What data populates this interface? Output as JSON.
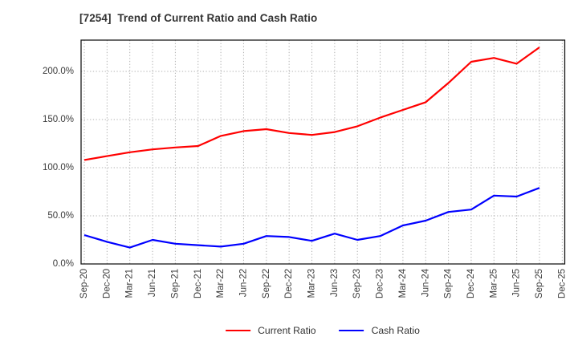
{
  "title": "[7254]  Trend of Current Ratio and Cash Ratio",
  "colors": {
    "current_ratio": "#ff0000",
    "cash_ratio": "#0000ff",
    "grid": "#b0b0b0",
    "spine": "#1a1a1a",
    "title_text": "#333333",
    "tick_text": "#3a3a3a"
  },
  "chart_data": {
    "type": "line",
    "title": "[7254]  Trend of Current Ratio and Cash Ratio",
    "categories": [
      "Sep-20",
      "Dec-20",
      "Mar-21",
      "Jun-21",
      "Sep-21",
      "Dec-21",
      "Mar-22",
      "Jun-22",
      "Sep-22",
      "Dec-22",
      "Mar-23",
      "Jun-23",
      "Sep-23",
      "Dec-23",
      "Mar-24",
      "Jun-24",
      "Sep-24",
      "Dec-24",
      "Mar-25",
      "Jun-25",
      "Sep-25",
      "Dec-25"
    ],
    "series": [
      {
        "name": "Current Ratio",
        "color": "#ff0000",
        "unit": "%",
        "values": [
          108,
          112,
          116,
          119,
          121,
          122.5,
          133,
          138,
          140,
          136,
          134,
          137,
          143,
          152,
          160,
          168,
          188,
          210,
          214,
          208,
          225
        ]
      },
      {
        "name": "Cash Ratio",
        "color": "#0000ff",
        "unit": "%",
        "values": [
          30,
          23,
          17,
          25,
          21,
          19.5,
          18,
          21,
          29,
          28,
          24,
          31.5,
          25,
          29,
          40,
          45,
          54,
          56.5,
          71,
          70,
          79
        ]
      }
    ],
    "xlabel": "",
    "ylabel": "",
    "ylim": [
      0,
      232.5
    ],
    "ytick_values": [
      0,
      50,
      100,
      150,
      200
    ],
    "ytick_labels": [
      "0.0%",
      "50.0%",
      "100.0%",
      "150.0%",
      "200.0%"
    ],
    "grid": true,
    "grid_style": "dotted",
    "legend_position": "bottom-center",
    "note_last_category_has_no_data": true
  }
}
